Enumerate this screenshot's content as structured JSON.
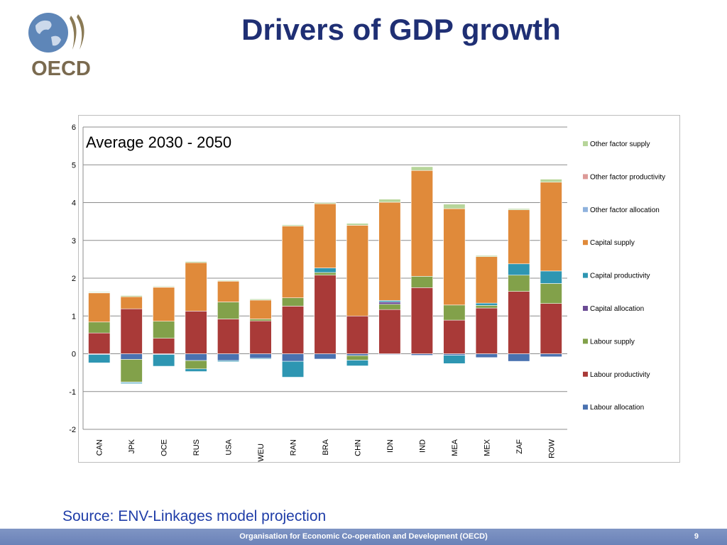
{
  "header": {
    "title": "Drivers of GDP growth",
    "logo_text": "OECD"
  },
  "source_note": "Source: ENV-Linkages model projection",
  "footer": {
    "organisation": "Organisation for Economic Co-operation and Development (OECD)",
    "page_number": "9"
  },
  "chart_data": {
    "type": "stacked-bar",
    "title": "Average 2030 - 2050",
    "xlabel": "",
    "ylabel": "",
    "ylim": [
      -2,
      6
    ],
    "yticks": [
      "6",
      "5",
      "4",
      "3",
      "2",
      "1",
      "0",
      "-1",
      "-2"
    ],
    "grid": true,
    "legend_position": "right",
    "categories": [
      "CAN",
      "JPK",
      "OCE",
      "RUS",
      "USA",
      "WEU",
      "RAN",
      "BRA",
      "CHN",
      "IDN",
      "IND",
      "MEA",
      "MEX",
      "ZAF",
      "ROW"
    ],
    "series": [
      {
        "name": "Labour allocation",
        "color": "#4a72b0",
        "values": [
          -0.02,
          -0.15,
          -0.02,
          -0.18,
          -0.18,
          -0.12,
          -0.2,
          -0.14,
          -0.05,
          -0.02,
          -0.04,
          -0.04,
          -0.1,
          -0.2,
          -0.08
        ]
      },
      {
        "name": "Labour productivity",
        "color": "#a93a38",
        "values": [
          0.55,
          1.19,
          0.41,
          1.13,
          0.92,
          0.87,
          1.26,
          2.08,
          1.0,
          1.17,
          1.75,
          0.89,
          1.21,
          1.65,
          1.33
        ]
      },
      {
        "name": "Labour supply",
        "color": "#82a14a",
        "values": [
          0.29,
          -0.6,
          0.45,
          -0.22,
          0.45,
          0.05,
          0.22,
          0.07,
          -0.12,
          0.14,
          0.3,
          0.4,
          0.07,
          0.43,
          0.53
        ]
      },
      {
        "name": "Capital allocation",
        "color": "#6b4b94",
        "values": [
          0.0,
          -0.01,
          0.0,
          0.0,
          0.0,
          0.0,
          0.0,
          0.0,
          0.0,
          0.06,
          0.0,
          0.0,
          0.0,
          0.0,
          0.0
        ]
      },
      {
        "name": "Capital productivity",
        "color": "#2e96b2",
        "values": [
          -0.22,
          -0.03,
          -0.31,
          -0.07,
          -0.03,
          -0.02,
          -0.42,
          0.12,
          -0.15,
          0.04,
          0.0,
          -0.22,
          0.06,
          0.3,
          0.33
        ]
      },
      {
        "name": "Capital supply",
        "color": "#e08a3a",
        "values": [
          0.77,
          0.32,
          0.9,
          1.28,
          0.55,
          0.5,
          1.9,
          1.7,
          2.4,
          2.6,
          2.8,
          2.55,
          1.23,
          1.43,
          2.35
        ]
      },
      {
        "name": "Other factor allocation",
        "color": "#8fb2dd",
        "values": [
          0.01,
          0.0,
          0.01,
          0.0,
          0.01,
          0.0,
          0.0,
          0.0,
          0.0,
          0.0,
          0.0,
          0.0,
          0.0,
          0.0,
          0.0
        ]
      },
      {
        "name": "Other factor productivity",
        "color": "#dd9a98",
        "values": [
          0.0,
          0.0,
          0.0,
          0.0,
          0.0,
          0.0,
          0.0,
          0.0,
          0.0,
          0.0,
          0.0,
          0.0,
          0.0,
          0.0,
          0.0
        ]
      },
      {
        "name": "Other factor supply",
        "color": "#b7d59a",
        "values": [
          0.02,
          0.03,
          0.02,
          0.03,
          0.02,
          0.03,
          0.03,
          0.03,
          0.05,
          0.08,
          0.1,
          0.12,
          0.03,
          0.03,
          0.08
        ]
      }
    ]
  }
}
